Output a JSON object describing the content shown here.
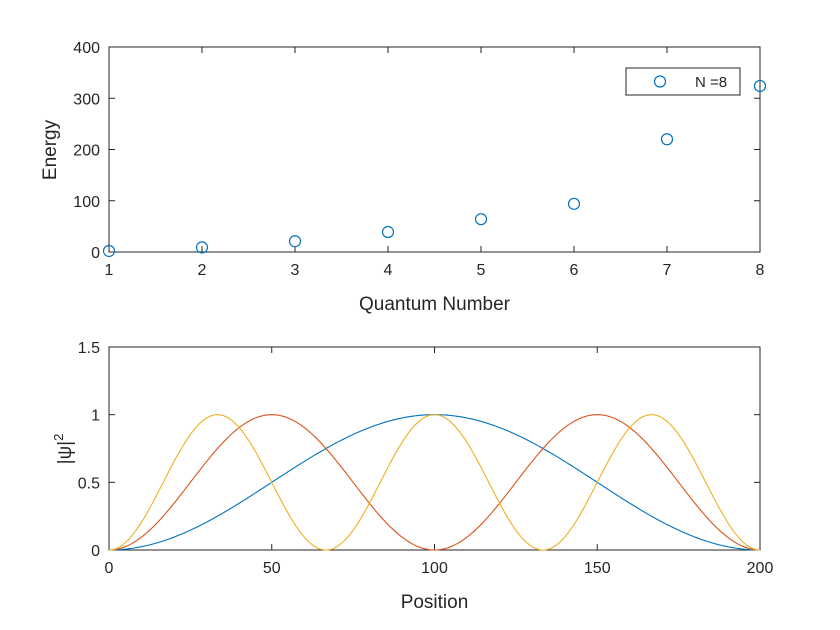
{
  "chart_data": [
    {
      "type": "scatter",
      "xlabel": "Quantum Number",
      "ylabel": "Energy",
      "xlim": [
        1,
        8
      ],
      "ylim": [
        0,
        400
      ],
      "xticks": [
        "1",
        "2",
        "3",
        "4",
        "5",
        "6",
        "7",
        "8"
      ],
      "yticks": [
        "0",
        "100",
        "200",
        "300",
        "400"
      ],
      "grid": false,
      "legend_position": "top-right",
      "series": [
        {
          "name": "N =8",
          "color": "#0072BD",
          "marker": "circle",
          "x": [
            1,
            2,
            3,
            4,
            5,
            6,
            7,
            8
          ],
          "y": [
            2,
            9,
            21,
            39,
            64,
            94,
            220,
            324
          ]
        }
      ]
    },
    {
      "type": "line",
      "xlabel": "Position",
      "ylabel": "|ψ|",
      "ylabel_superscript": "2",
      "xlim": [
        0,
        200
      ],
      "ylim": [
        0,
        1.5
      ],
      "xticks": [
        "0",
        "50",
        "100",
        "150",
        "200"
      ],
      "yticks": [
        "0",
        "0.5",
        "1",
        "1.5"
      ],
      "grid": false,
      "series": [
        {
          "mode": 1,
          "color": "#0072BD"
        },
        {
          "mode": 2,
          "color": "#D95319"
        },
        {
          "mode": 3,
          "color": "#EDB120"
        }
      ]
    }
  ]
}
